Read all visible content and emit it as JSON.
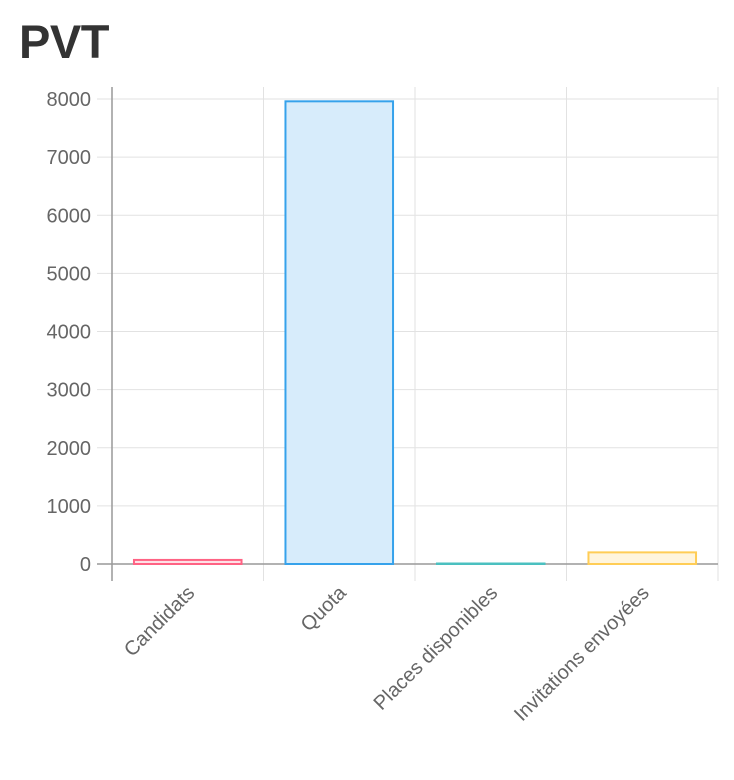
{
  "chart_data": {
    "type": "bar",
    "title": "PVT",
    "categories": [
      "Candidats",
      "Quota",
      "Places disponibles",
      "Invitations envoyées"
    ],
    "values": [
      70,
      7960,
      5,
      200
    ],
    "ylim": [
      0,
      8000
    ],
    "yticks": [
      0,
      1000,
      2000,
      3000,
      4000,
      5000,
      6000,
      7000,
      8000
    ],
    "grid": true,
    "legend": "none",
    "bar_colors": [
      {
        "border": "#ff6384",
        "fill": "#ffe0e6"
      },
      {
        "border": "#36a2eb",
        "fill": "#d7ecfb"
      },
      {
        "border": "#4bc0c0",
        "fill": "#dbf2f2"
      },
      {
        "border": "#ffcd56",
        "fill": "#fff5dd"
      }
    ]
  }
}
